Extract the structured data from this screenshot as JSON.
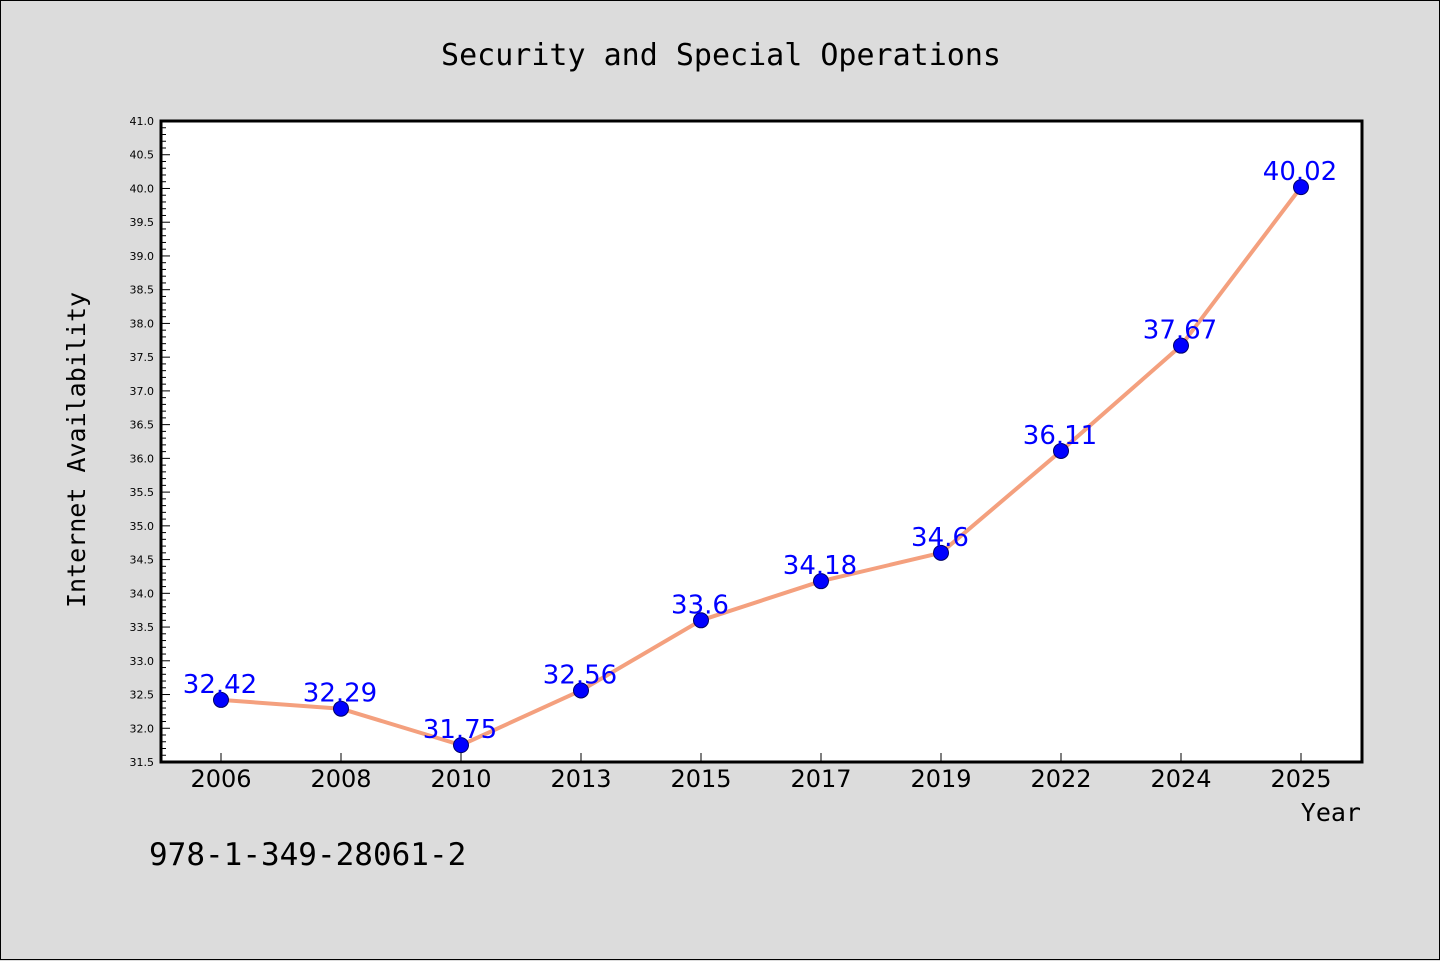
{
  "footer": "978-1-349-28061-2",
  "colors": {
    "background": "#dcdcdc",
    "line": "#f4a07e",
    "marker": "#0000ff",
    "data_label": "#0000ff"
  },
  "chart_data": {
    "type": "line",
    "title": "Security and Special Operations",
    "xlabel": "Year",
    "ylabel": "Internet Availability",
    "categories": [
      "2006",
      "2008",
      "2010",
      "2013",
      "2015",
      "2017",
      "2019",
      "2022",
      "2024",
      "2025"
    ],
    "series": [
      {
        "values": [
          32.42,
          32.29,
          31.75,
          32.56,
          33.6,
          34.18,
          34.6,
          36.11,
          37.67,
          40.02
        ],
        "labels": [
          "32.42",
          "32.29",
          "31.75",
          "32.56",
          "33.6",
          "34.18",
          "34.6",
          "36.11",
          "37.67",
          "40.02"
        ]
      }
    ],
    "ylim": [
      31.5,
      41.0
    ],
    "yticks": [
      "31.5",
      "32.0",
      "32.5",
      "33.0",
      "33.5",
      "34.0",
      "34.5",
      "35.0",
      "35.5",
      "36.0",
      "36.5",
      "37.0",
      "37.5",
      "38.0",
      "38.5",
      "39.0",
      "39.5",
      "40.0",
      "40.5",
      "41.0"
    ],
    "grid": false,
    "legend": "none"
  }
}
